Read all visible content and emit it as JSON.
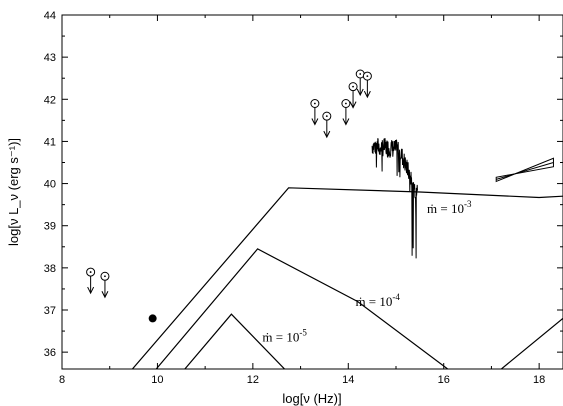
{
  "chart_data": {
    "type": "line",
    "title": "",
    "xlabel": "log[ν (Hz)]",
    "ylabel": "log[ν L_ν (erg s⁻¹)]",
    "xlim": [
      8,
      18.5
    ],
    "ylim": [
      35.6,
      44
    ],
    "xticks": [
      8,
      10,
      12,
      14,
      16,
      18
    ],
    "yticks": [
      36,
      37,
      38,
      39,
      40,
      41,
      42,
      43,
      44
    ],
    "grid": false,
    "legend": "none",
    "series": [
      {
        "label": "ṁ = 10⁻³",
        "label_parts": {
          "prefix": "ṁ = 10",
          "exponent": "-3"
        },
        "points": [
          [
            9.4,
            35.5
          ],
          [
            12.75,
            39.9
          ],
          [
            15.5,
            39.8
          ],
          [
            18.0,
            39.67
          ],
          [
            18.5,
            39.7
          ]
        ]
      },
      {
        "label": "ṁ = 10⁻⁴",
        "label_parts": {
          "prefix": "ṁ = 10",
          "exponent": "-4"
        },
        "points": [
          [
            9.9,
            35.5
          ],
          [
            12.1,
            38.45
          ],
          [
            14.2,
            37.2
          ],
          [
            16.2,
            35.5
          ]
        ],
        "extra_segment": [
          [
            17.1,
            35.5
          ],
          [
            18.5,
            36.8
          ]
        ]
      },
      {
        "label": "ṁ = 10⁻⁵",
        "label_parts": {
          "prefix": "ṁ = 10",
          "exponent": "-5"
        },
        "points": [
          [
            10.5,
            35.5
          ],
          [
            11.55,
            36.9
          ],
          [
            12.75,
            35.5
          ]
        ]
      }
    ],
    "upper_limits": [
      [
        8.6,
        37.9
      ],
      [
        8.9,
        37.8
      ],
      [
        13.3,
        41.9
      ],
      [
        13.55,
        41.6
      ],
      [
        13.95,
        41.9
      ],
      [
        14.1,
        42.3
      ],
      [
        14.25,
        42.6
      ],
      [
        14.4,
        42.55
      ]
    ],
    "detections": [
      [
        9.9,
        36.8
      ]
    ],
    "spectrum": {
      "x_range": [
        14.5,
        15.45
      ],
      "y_start": 40.9,
      "y_min": 38.2
    },
    "xray_bowtie": {
      "x_range": [
        17.1,
        18.3
      ],
      "y_left": [
        40.05,
        40.15
      ],
      "y_right": [
        40.4,
        40.6
      ]
    }
  }
}
